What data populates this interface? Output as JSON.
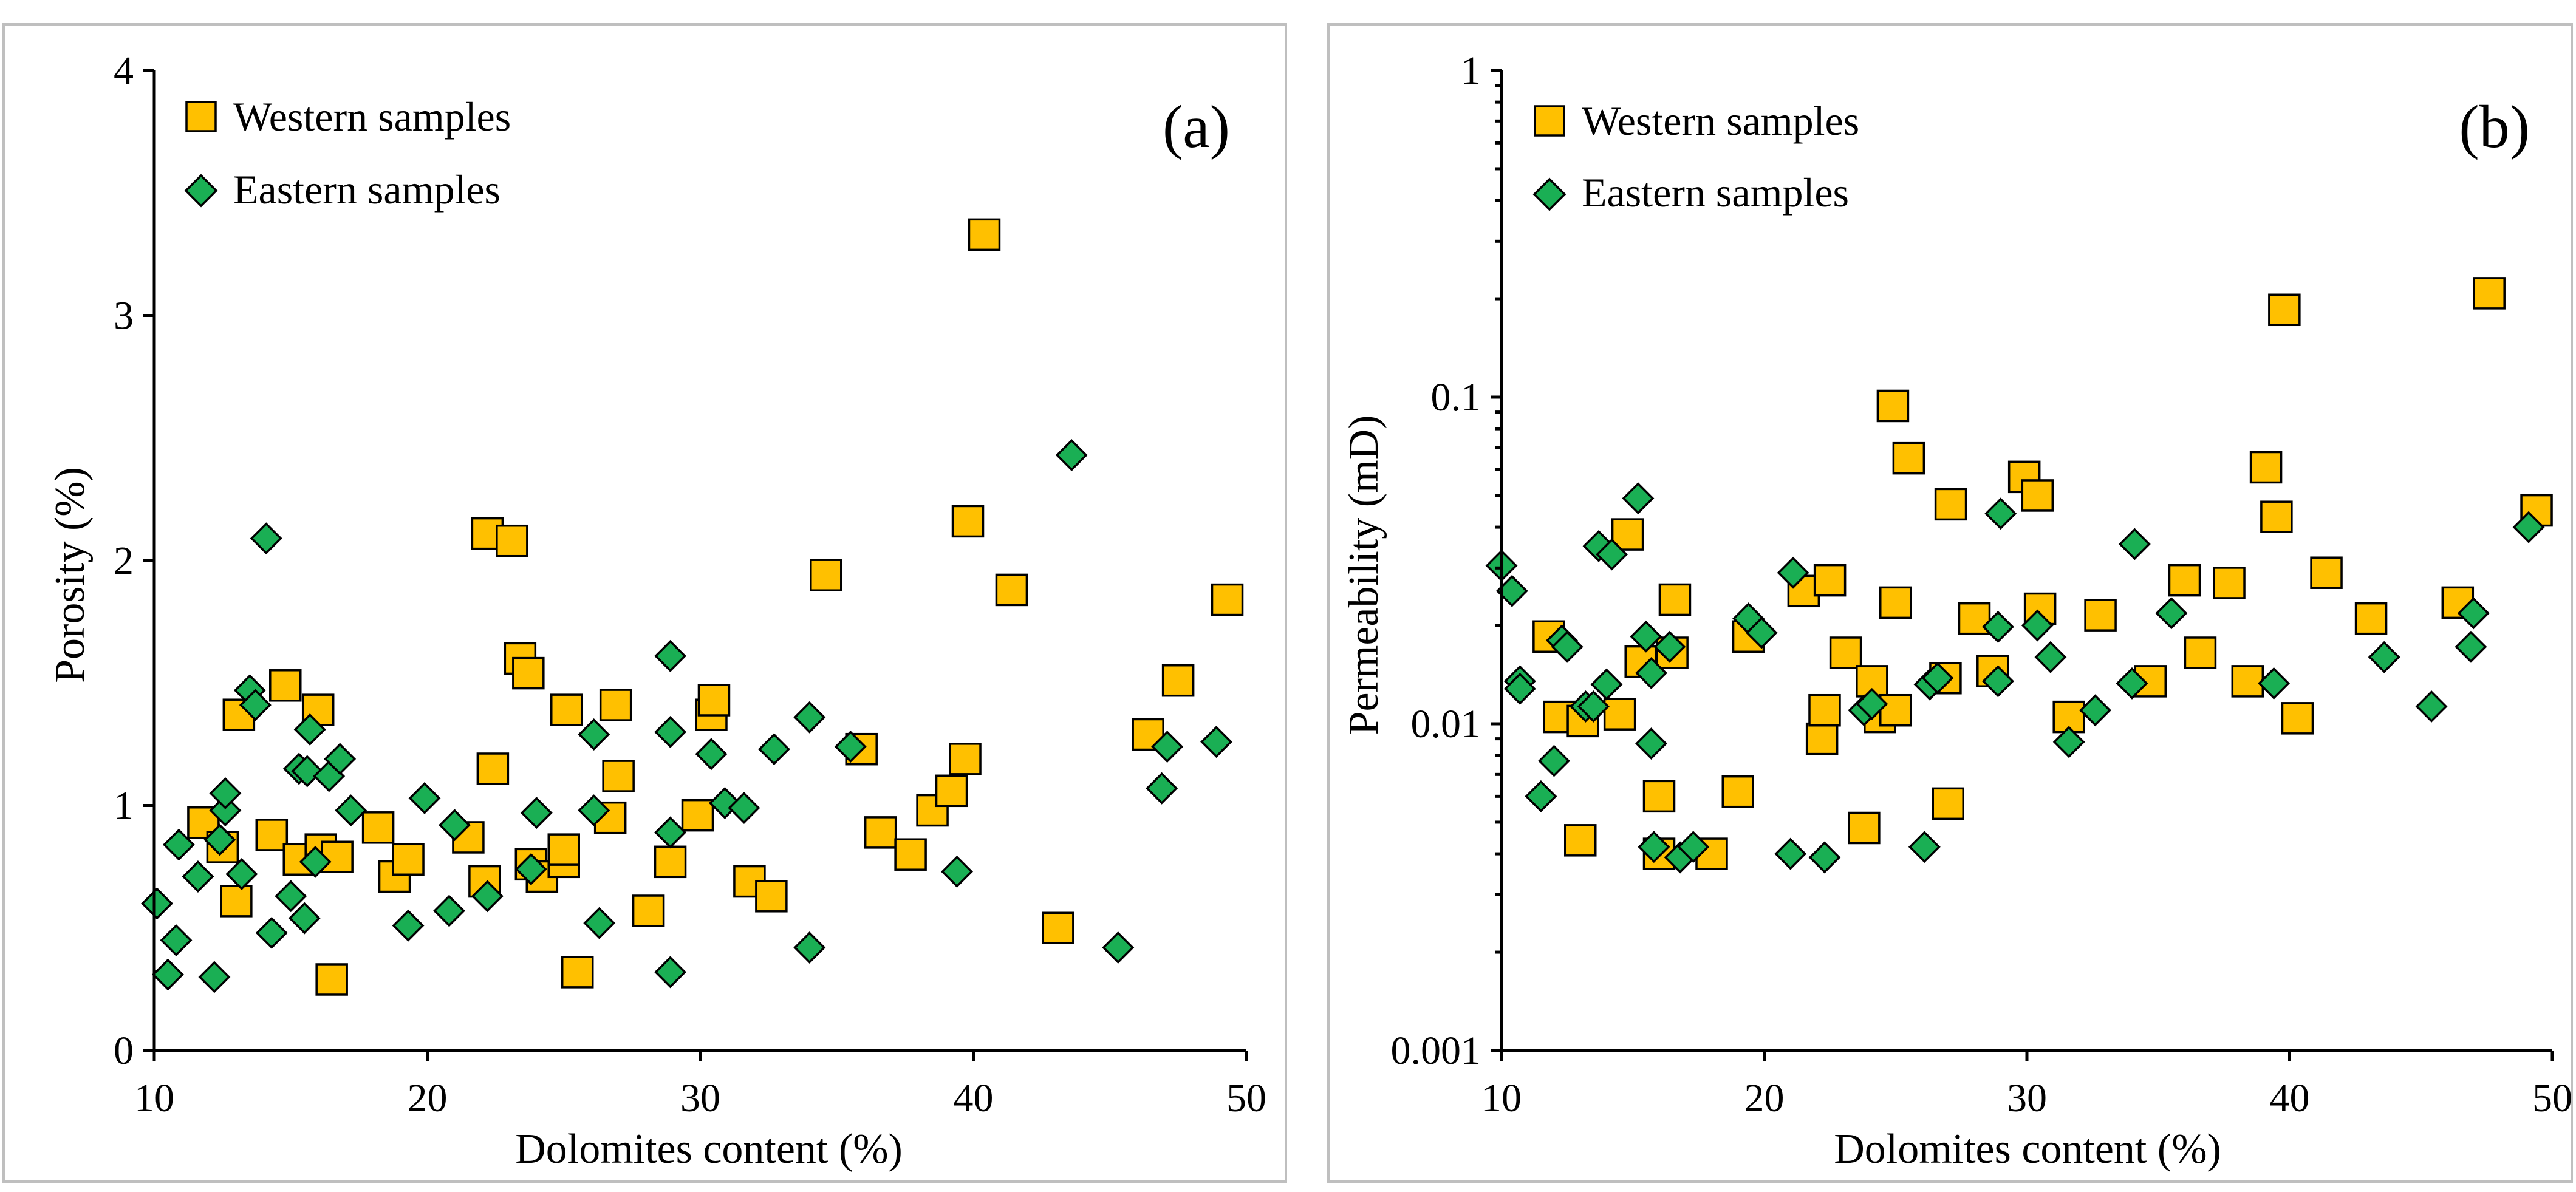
{
  "chart_data": [
    {
      "type": "scatter",
      "panel_label": "(a)",
      "title": "",
      "xlabel": "Dolomites content (%)",
      "ylabel": "Porosity (%)",
      "xlim": [
        10,
        50
      ],
      "ylim": [
        0,
        4
      ],
      "yscale": "linear",
      "x_ticks": [
        10,
        20,
        30,
        40,
        50
      ],
      "y_ticks": [
        0,
        1,
        2,
        3,
        4
      ],
      "x_tick_labels": [
        "10",
        "20",
        "30",
        "40",
        "50"
      ],
      "y_tick_labels": [
        "0",
        "1",
        "2",
        "3",
        "4"
      ],
      "grid": false,
      "legend": "top-left",
      "series": [
        {
          "name": "Western samples",
          "marker": "square",
          "color": "#ffc000",
          "points": [
            [
              11.8,
              0.93
            ],
            [
              12.5,
              0.83
            ],
            [
              13,
              0.61
            ],
            [
              13.1,
              1.37
            ],
            [
              14.3,
              0.88
            ],
            [
              14.8,
              1.49
            ],
            [
              15.3,
              0.78
            ],
            [
              16,
              1.39
            ],
            [
              16.1,
              0.82
            ],
            [
              16.5,
              0.29
            ],
            [
              16.7,
              0.79
            ],
            [
              18.2,
              0.91
            ],
            [
              18.8,
              0.71
            ],
            [
              19.3,
              0.78
            ],
            [
              21.5,
              0.87
            ],
            [
              22.1,
              0.69
            ],
            [
              22.2,
              2.11
            ],
            [
              22.4,
              1.15
            ],
            [
              23.1,
              2.08
            ],
            [
              23.4,
              1.6
            ],
            [
              23.7,
              1.54
            ],
            [
              23.8,
              0.76
            ],
            [
              24.2,
              0.71
            ],
            [
              25,
              0.77
            ],
            [
              25,
              0.82
            ],
            [
              25.1,
              1.39
            ],
            [
              25.5,
              0.32
            ],
            [
              26.7,
              0.95
            ],
            [
              26.9,
              1.41
            ],
            [
              27,
              1.12
            ],
            [
              28.1,
              0.57
            ],
            [
              28.9,
              0.77
            ],
            [
              29.9,
              0.96
            ],
            [
              30.4,
              1.37
            ],
            [
              30.5,
              1.43
            ],
            [
              31.8,
              0.69
            ],
            [
              32.6,
              0.63
            ],
            [
              34.6,
              1.94
            ],
            [
              35.9,
              1.23
            ],
            [
              36.6,
              0.89
            ],
            [
              37.7,
              0.8
            ],
            [
              38.5,
              0.98
            ],
            [
              39.2,
              1.06
            ],
            [
              39.7,
              1.19
            ],
            [
              39.8,
              2.16
            ],
            [
              40.4,
              3.33
            ],
            [
              41.4,
              1.88
            ],
            [
              43.1,
              0.5
            ],
            [
              46.4,
              1.29
            ],
            [
              47.5,
              1.51
            ],
            [
              49.3,
              1.84
            ]
          ]
        },
        {
          "name": "Eastern samples",
          "marker": "diamond",
          "color": "#1aaf54",
          "points": [
            [
              10.1,
              0.6
            ],
            [
              10.5,
              0.31
            ],
            [
              10.8,
              0.45
            ],
            [
              10.9,
              0.84
            ],
            [
              11.6,
              0.71
            ],
            [
              12.2,
              0.3
            ],
            [
              12.4,
              0.86
            ],
            [
              12.6,
              0.98
            ],
            [
              12.6,
              1.05
            ],
            [
              13.2,
              0.72
            ],
            [
              13.5,
              1.47
            ],
            [
              13.7,
              1.41
            ],
            [
              14.1,
              2.09
            ],
            [
              14.3,
              0.48
            ],
            [
              15,
              0.63
            ],
            [
              15.3,
              1.15
            ],
            [
              15.5,
              0.54
            ],
            [
              15.6,
              1.14
            ],
            [
              15.7,
              1.31
            ],
            [
              15.9,
              0.77
            ],
            [
              16.4,
              1.12
            ],
            [
              16.8,
              1.19
            ],
            [
              17.2,
              0.98
            ],
            [
              19.3,
              0.51
            ],
            [
              19.9,
              1.03
            ],
            [
              20.8,
              0.57
            ],
            [
              21,
              0.92
            ],
            [
              22.2,
              0.63
            ],
            [
              23.8,
              0.74
            ],
            [
              24,
              0.97
            ],
            [
              26.1,
              1.29
            ],
            [
              26.1,
              0.98
            ],
            [
              26.3,
              0.52
            ],
            [
              28.9,
              1.61
            ],
            [
              28.9,
              1.3
            ],
            [
              28.9,
              0.89
            ],
            [
              28.9,
              0.32
            ],
            [
              30.4,
              1.21
            ],
            [
              30.9,
              1.01
            ],
            [
              31.6,
              0.99
            ],
            [
              32.7,
              1.23
            ],
            [
              34,
              1.36
            ],
            [
              34,
              0.42
            ],
            [
              35.5,
              1.24
            ],
            [
              39.4,
              0.73
            ],
            [
              43.6,
              2.43
            ],
            [
              45.3,
              0.42
            ],
            [
              46.9,
              1.07
            ],
            [
              47.1,
              1.24
            ],
            [
              48.9,
              1.26
            ]
          ]
        }
      ]
    },
    {
      "type": "scatter",
      "panel_label": "(b)",
      "title": "",
      "xlabel": "Dolomites content (%)",
      "ylabel": "Permeability (mD)",
      "xlim": [
        10,
        50
      ],
      "ylim": [
        0.001,
        1
      ],
      "yscale": "log",
      "x_ticks": [
        10,
        20,
        30,
        40,
        50
      ],
      "y_ticks": [
        0.001,
        0.01,
        0.1,
        1
      ],
      "x_tick_labels": [
        "10",
        "20",
        "30",
        "40",
        "50"
      ],
      "y_tick_labels": [
        "0.001",
        "0.01",
        "0.1",
        "1"
      ],
      "y_minor_ticks": [
        0.002,
        0.003,
        0.004,
        0.005,
        0.006,
        0.007,
        0.008,
        0.009,
        0.02,
        0.03,
        0.04,
        0.05,
        0.06,
        0.07,
        0.08,
        0.09,
        0.2,
        0.3,
        0.4,
        0.5,
        0.6,
        0.7,
        0.8,
        0.9
      ],
      "grid": false,
      "legend": "top-left",
      "series": [
        {
          "name": "Western samples",
          "marker": "square",
          "color": "#ffc000",
          "points": [
            [
              11.8,
              0.0185
            ],
            [
              12.2,
              0.0105
            ],
            [
              13,
              0.0044
            ],
            [
              13.1,
              0.0102
            ],
            [
              14.5,
              0.0107
            ],
            [
              14.8,
              0.038
            ],
            [
              15.3,
              0.0155
            ],
            [
              16,
              0.004
            ],
            [
              16,
              0.006
            ],
            [
              16.5,
              0.0165
            ],
            [
              16.6,
              0.024
            ],
            [
              18,
              0.004
            ],
            [
              19,
              0.0062
            ],
            [
              19.4,
              0.0185
            ],
            [
              21.5,
              0.0255
            ],
            [
              22.5,
              0.0275
            ],
            [
              22.2,
              0.009
            ],
            [
              22.3,
              0.011
            ],
            [
              23.1,
              0.0165
            ],
            [
              23.8,
              0.0048
            ],
            [
              24.1,
              0.0135
            ],
            [
              24.4,
              0.0105
            ],
            [
              24.9,
              0.094
            ],
            [
              25,
              0.0235
            ],
            [
              25,
              0.011
            ],
            [
              25.5,
              0.065
            ],
            [
              26.9,
              0.0138
            ],
            [
              27,
              0.0057
            ],
            [
              27.1,
              0.047
            ],
            [
              28,
              0.021
            ],
            [
              28.7,
              0.0145
            ],
            [
              29.9,
              0.057
            ],
            [
              30.4,
              0.05
            ],
            [
              30.5,
              0.0225
            ],
            [
              31.6,
              0.0105
            ],
            [
              32.8,
              0.0215
            ],
            [
              34.7,
              0.0135
            ],
            [
              36,
              0.0275
            ],
            [
              36.6,
              0.0165
            ],
            [
              37.7,
              0.027
            ],
            [
              38.4,
              0.0135
            ],
            [
              39.1,
              0.061
            ],
            [
              39.5,
              0.043
            ],
            [
              39.8,
              0.185
            ],
            [
              40.3,
              0.0104
            ],
            [
              41.4,
              0.029
            ],
            [
              43.1,
              0.021
            ],
            [
              46.4,
              0.0235
            ],
            [
              47.6,
              0.208
            ],
            [
              49.4,
              0.045
            ]
          ]
        },
        {
          "name": "Eastern samples",
          "marker": "diamond",
          "color": "#1aaf54",
          "points": [
            [
              10,
              0.0305
            ],
            [
              10.4,
              0.0255
            ],
            [
              10.7,
              0.0135
            ],
            [
              10.7,
              0.0128
            ],
            [
              11.5,
              0.006
            ],
            [
              12,
              0.0077
            ],
            [
              12.3,
              0.018
            ],
            [
              12.5,
              0.0172
            ],
            [
              13.2,
              0.0113
            ],
            [
              13.5,
              0.0113
            ],
            [
              13.7,
              0.035
            ],
            [
              14,
              0.0132
            ],
            [
              14.2,
              0.033
            ],
            [
              15.2,
              0.049
            ],
            [
              15.5,
              0.0185
            ],
            [
              15.7,
              0.0143
            ],
            [
              15.7,
              0.0087
            ],
            [
              15.8,
              0.0042
            ],
            [
              16.4,
              0.0172
            ],
            [
              16.8,
              0.0039
            ],
            [
              17.3,
              0.0042
            ],
            [
              19.4,
              0.021
            ],
            [
              19.9,
              0.019
            ],
            [
              21,
              0.004
            ],
            [
              21.1,
              0.029
            ],
            [
              22.3,
              0.0039
            ],
            [
              23.8,
              0.011
            ],
            [
              24.1,
              0.0115
            ],
            [
              26.1,
              0.0042
            ],
            [
              26.3,
              0.0132
            ],
            [
              26.6,
              0.0138
            ],
            [
              28.9,
              0.0198
            ],
            [
              28.9,
              0.0135
            ],
            [
              29,
              0.044
            ],
            [
              30.4,
              0.02
            ],
            [
              30.9,
              0.016
            ],
            [
              31.6,
              0.0088
            ],
            [
              32.6,
              0.011
            ],
            [
              34,
              0.0133
            ],
            [
              34.1,
              0.0355
            ],
            [
              35.5,
              0.0218
            ],
            [
              39.4,
              0.0133
            ],
            [
              43.6,
              0.016
            ],
            [
              45.4,
              0.0113
            ],
            [
              46.9,
              0.0172
            ],
            [
              47,
              0.0218
            ],
            [
              49.1,
              0.04
            ]
          ]
        }
      ]
    }
  ],
  "colors": {
    "western": "#ffc000",
    "eastern": "#1aaf54",
    "frame": "#bfbfbf",
    "axis": "#000000"
  }
}
